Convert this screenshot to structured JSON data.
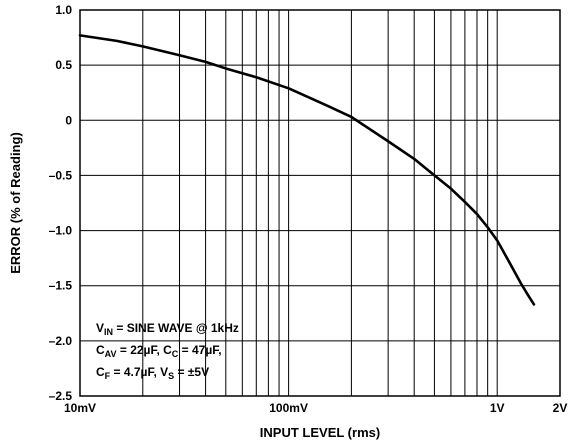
{
  "chart_data": {
    "type": "line",
    "xlabel": "INPUT LEVEL (rms)",
    "ylabel": "ERROR (% of Reading)",
    "x_scale": "log",
    "xlim_mV": [
      10,
      2000
    ],
    "ylim": [
      -2.5,
      1.0
    ],
    "grid": true,
    "x_ticks": [
      {
        "value_mV": 10,
        "label": "10mV"
      },
      {
        "value_mV": 100,
        "label": "100mV"
      },
      {
        "value_mV": 1000,
        "label": "1V"
      },
      {
        "value_mV": 2000,
        "label": "2V"
      }
    ],
    "y_ticks": [
      {
        "value": 1.0,
        "label": "1.0"
      },
      {
        "value": 0.5,
        "label": "0.5"
      },
      {
        "value": 0,
        "label": "0"
      },
      {
        "value": -0.5,
        "label": "–0.5"
      },
      {
        "value": -1.0,
        "label": "–1.0"
      },
      {
        "value": -1.5,
        "label": "–1.5"
      },
      {
        "value": -2.0,
        "label": "–2.0"
      },
      {
        "value": -2.5,
        "label": "–2.5"
      }
    ],
    "series": [
      {
        "x_mV": [
          10,
          15,
          20,
          30,
          40,
          50,
          70,
          100,
          150,
          200,
          300,
          400,
          500,
          600,
          700,
          800,
          900,
          1000,
          1100,
          1200,
          1300,
          1400,
          1500
        ],
        "y": [
          0.77,
          0.72,
          0.67,
          0.59,
          0.53,
          0.47,
          0.39,
          0.29,
          0.14,
          0.03,
          -0.19,
          -0.35,
          -0.5,
          -0.62,
          -0.74,
          -0.85,
          -0.97,
          -1.09,
          -1.23,
          -1.36,
          -1.48,
          -1.58,
          -1.67
        ]
      }
    ],
    "annotation": {
      "lines": [
        [
          {
            "t": "V"
          },
          {
            "t": "IN",
            "sub": true
          },
          {
            "t": " = SINE WAVE @ 1kHz"
          }
        ],
        [
          {
            "t": "C"
          },
          {
            "t": "AV",
            "sub": true
          },
          {
            "t": " = 22µF, C"
          },
          {
            "t": "C",
            "sub": true
          },
          {
            "t": " = 47µF,"
          }
        ],
        [
          {
            "t": "C"
          },
          {
            "t": "F",
            "sub": true
          },
          {
            "t": " = 4.7µF, V"
          },
          {
            "t": "S",
            "sub": true
          },
          {
            "t": " = ±5V"
          }
        ]
      ]
    }
  }
}
